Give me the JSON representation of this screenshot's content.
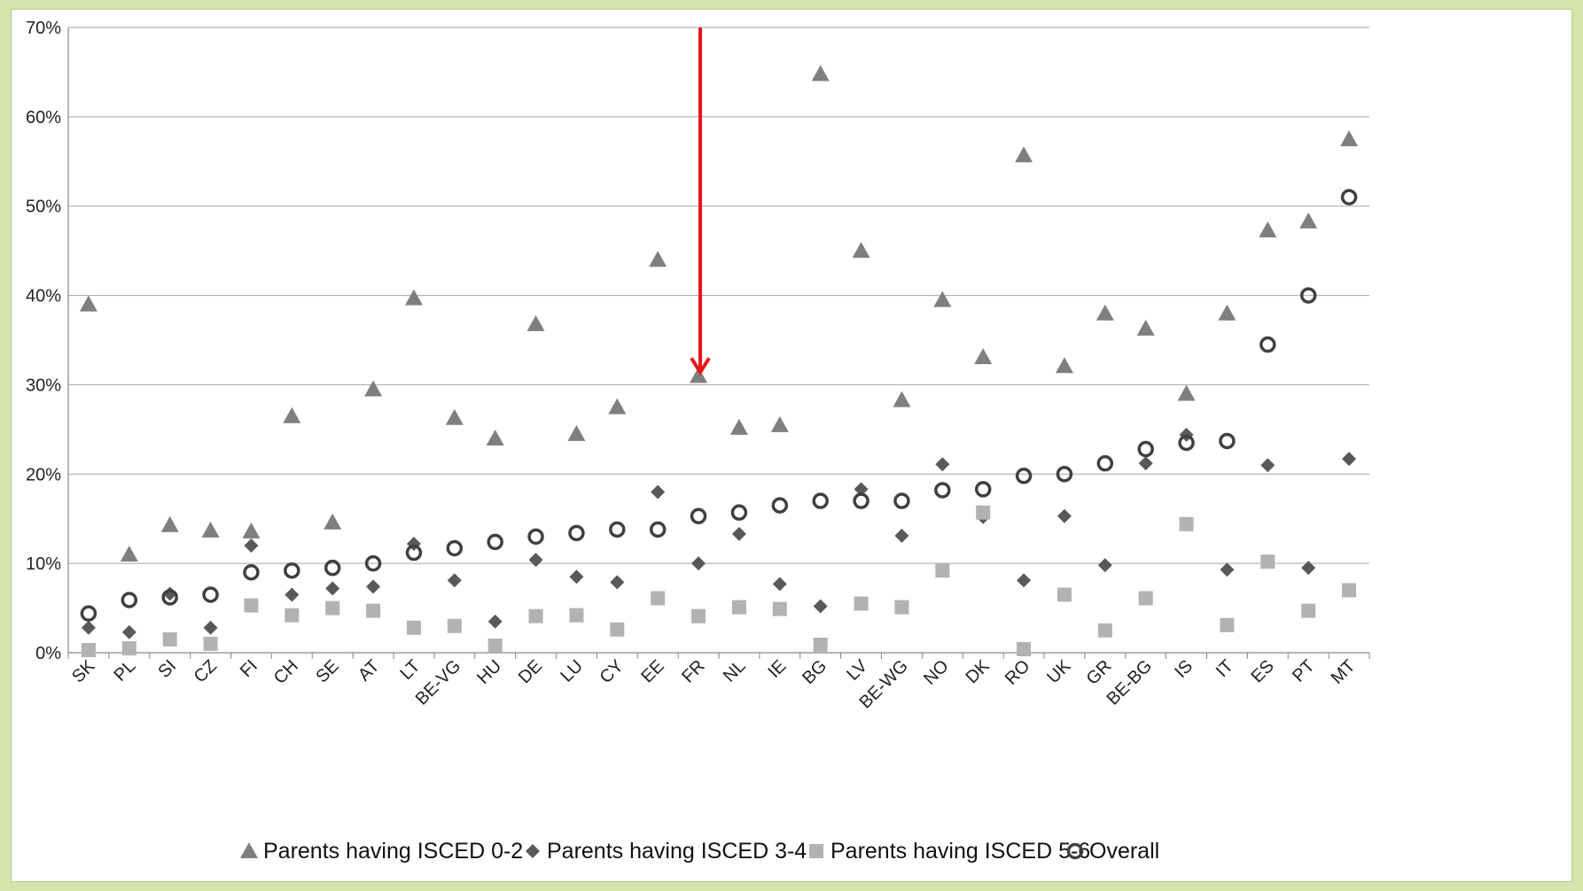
{
  "chart_data": {
    "type": "scatter",
    "categories": [
      "SK",
      "PL",
      "SI",
      "CZ",
      "FI",
      "CH",
      "SE",
      "AT",
      "LT",
      "BE-VG",
      "HU",
      "DE",
      "LU",
      "CY",
      "EE",
      "FR",
      "NL",
      "IE",
      "BG",
      "LV",
      "BE-WG",
      "NO",
      "DK",
      "RO",
      "UK",
      "GR",
      "BE-BG",
      "IS",
      "IT",
      "ES",
      "PT",
      "MT"
    ],
    "y_ticks": [
      "0%",
      "10%",
      "20%",
      "30%",
      "40%",
      "50%",
      "60%",
      "70%"
    ],
    "ylim": [
      0,
      70
    ],
    "grid": true,
    "legend_position": "bottom",
    "annotation": {
      "type": "arrow",
      "color": "#e8141b",
      "target_category": "FR",
      "from_value": 70,
      "to_value": 31
    },
    "series": [
      {
        "name": "Parents having ISCED 0-2",
        "marker": "triangle",
        "color": "#7f7f7f",
        "values": [
          39,
          11,
          14.3,
          13.7,
          13.6,
          26.5,
          14.6,
          29.5,
          39.7,
          26.3,
          24,
          36.8,
          24.5,
          27.5,
          44,
          31,
          25.2,
          25.5,
          64.8,
          45,
          28.3,
          39.5,
          33.1,
          55.7,
          32.1,
          38,
          36.3,
          29,
          38,
          47.3,
          48.3,
          57.5
        ]
      },
      {
        "name": "Parents having ISCED 3-4",
        "marker": "diamond",
        "color": "#595959",
        "values": [
          2.8,
          2.3,
          6.6,
          2.8,
          12,
          6.5,
          7.2,
          7.4,
          12.2,
          8.1,
          3.5,
          10.4,
          8.5,
          7.9,
          18,
          10,
          13.3,
          7.7,
          5.2,
          18.3,
          13.1,
          21.1,
          15.2,
          8.1,
          15.3,
          9.8,
          21.2,
          24.4,
          9.3,
          21,
          9.5,
          21.7
        ]
      },
      {
        "name": "Parents having ISCED 5-6",
        "marker": "square",
        "color": "#b2b2b2",
        "values": [
          0.3,
          0.5,
          1.5,
          1,
          5.3,
          4.2,
          5,
          4.7,
          2.8,
          3,
          0.8,
          4.1,
          4.2,
          2.6,
          6.1,
          4.1,
          5.1,
          4.9,
          0.9,
          5.5,
          5.1,
          9.2,
          15.7,
          0.4,
          6.5,
          2.5,
          6.1,
          14.4,
          3.1,
          10.2,
          4.7,
          7
        ]
      },
      {
        "name": "Overall",
        "marker": "circle",
        "color": "#404040",
        "values": [
          4.4,
          5.9,
          6.2,
          6.5,
          9,
          9.2,
          9.5,
          10,
          11.2,
          11.7,
          12.4,
          13,
          13.4,
          13.8,
          13.8,
          15.3,
          15.7,
          16.5,
          17,
          17,
          17,
          18.2,
          18.3,
          19.8,
          20,
          21.2,
          22.8,
          23.5,
          23.7,
          34.5,
          40,
          51
        ]
      }
    ]
  }
}
